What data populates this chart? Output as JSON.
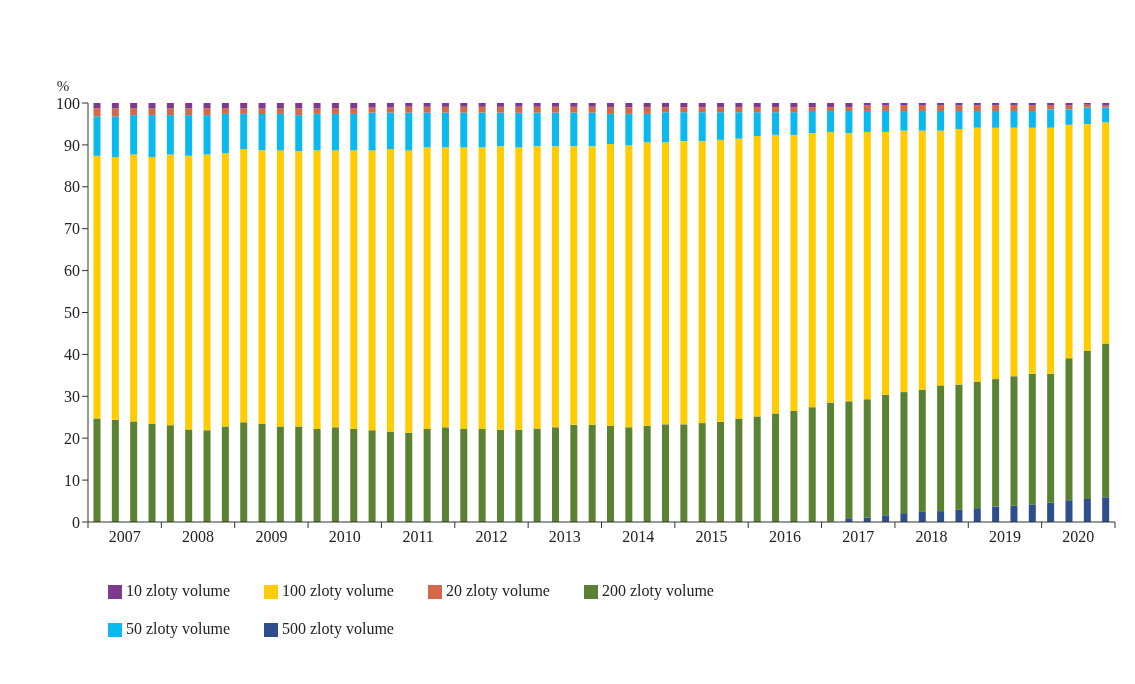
{
  "chart_data": {
    "type": "bar",
    "stacked": true,
    "ylabel": "%",
    "categories": [
      null,
      "2007",
      null,
      null,
      null,
      "2008",
      null,
      null,
      null,
      "2009",
      null,
      null,
      null,
      "2010",
      null,
      null,
      null,
      "2011",
      null,
      null,
      null,
      "2012",
      null,
      null,
      null,
      "2013",
      null,
      null,
      null,
      "2014",
      null,
      null,
      null,
      "2015",
      null,
      null,
      null,
      "2016",
      null,
      null,
      null,
      "2017",
      null,
      null,
      null,
      "2018",
      null,
      null,
      null,
      "2019",
      null,
      null,
      null,
      "2020",
      null,
      null
    ],
    "ylim": [
      0,
      100
    ],
    "yticks": [
      0,
      10,
      20,
      30,
      40,
      50,
      60,
      70,
      80,
      90,
      100
    ],
    "grid": false,
    "legend": "bottom",
    "series": [
      {
        "name": "500 zloty volume",
        "color": "#2e4e8c",
        "values": [
          0,
          0,
          0,
          0,
          0,
          0,
          0,
          0,
          0,
          0,
          0,
          0,
          0,
          0,
          0,
          0,
          0,
          0,
          0,
          0,
          0,
          0,
          0,
          0,
          0,
          0,
          0,
          0,
          0,
          0,
          0,
          0,
          0,
          0,
          0,
          0,
          0,
          0,
          0,
          0,
          0.1,
          0.9,
          1.1,
          1.6,
          2.1,
          2.4,
          2.6,
          2.9,
          3.3,
          3.7,
          3.9,
          4.2,
          4.6,
          5.2,
          5.5,
          5.9
        ]
      },
      {
        "name": "200 zloty volume",
        "color": "#5a8232",
        "values": [
          24.7,
          24.4,
          24.0,
          23.4,
          23.1,
          22.1,
          21.9,
          22.8,
          23.8,
          23.4,
          22.8,
          22.8,
          22.2,
          22.6,
          22.2,
          21.9,
          21.6,
          21.3,
          22.2,
          22.6,
          22.2,
          22.2,
          22.0,
          22.0,
          22.3,
          22.6,
          23.2,
          23.2,
          23.0,
          22.6,
          23.0,
          23.3,
          23.3,
          23.6,
          23.9,
          24.6,
          25.2,
          25.9,
          26.5,
          27.4,
          28.4,
          27.9,
          28.2,
          28.7,
          28.9,
          29.2,
          30.0,
          29.9,
          30.2,
          30.4,
          30.9,
          31.2,
          30.8,
          33.9,
          35.3,
          36.7
        ]
      },
      {
        "name": "100 zloty volume",
        "color": "#ffcc00",
        "values": [
          62.7,
          62.7,
          63.7,
          63.7,
          64.6,
          65.3,
          65.8,
          65.2,
          65.2,
          65.3,
          65.9,
          65.7,
          66.5,
          66.1,
          66.5,
          66.8,
          67.4,
          67.4,
          67.2,
          66.8,
          67.2,
          67.2,
          67.7,
          67.4,
          67.4,
          67.1,
          66.5,
          66.5,
          67.2,
          67.3,
          67.6,
          67.3,
          67.6,
          67.3,
          67.3,
          66.9,
          66.9,
          66.5,
          65.9,
          65.4,
          64.6,
          64.0,
          63.8,
          62.8,
          62.4,
          61.8,
          60.8,
          61.0,
          60.6,
          60.0,
          59.3,
          58.7,
          58.7,
          55.7,
          54.2,
          52.8
        ]
      },
      {
        "name": "50 zloty volume",
        "color": "#0ab9ee",
        "values": [
          9.4,
          9.7,
          9.4,
          10.0,
          9.4,
          9.7,
          9.4,
          9.4,
          8.4,
          8.7,
          8.7,
          8.6,
          8.7,
          8.7,
          8.7,
          9.0,
          8.7,
          9.0,
          8.3,
          8.3,
          8.3,
          8.3,
          8.0,
          8.3,
          8.0,
          8.0,
          8.0,
          8.0,
          7.2,
          7.5,
          6.8,
          7.2,
          6.9,
          6.9,
          6.6,
          6.3,
          5.7,
          5.4,
          5.4,
          5.3,
          5.0,
          5.3,
          5.0,
          5.0,
          4.7,
          4.7,
          4.7,
          4.3,
          4.0,
          4.0,
          4.0,
          4.0,
          4.4,
          3.7,
          3.9,
          3.5
        ]
      },
      {
        "name": "20 zloty volume",
        "color": "#d4694a",
        "values": [
          1.9,
          1.9,
          1.6,
          1.6,
          1.6,
          1.6,
          1.6,
          1.3,
          1.3,
          1.3,
          1.3,
          1.6,
          1.3,
          1.3,
          1.3,
          1.2,
          1.2,
          1.4,
          1.4,
          1.4,
          1.4,
          1.4,
          1.4,
          1.4,
          1.4,
          1.4,
          1.4,
          1.4,
          1.6,
          1.6,
          1.6,
          1.2,
          1.2,
          1.2,
          1.2,
          1.2,
          1.2,
          1.2,
          1.2,
          0.9,
          0.9,
          0.9,
          1.3,
          1.3,
          1.4,
          1.4,
          1.4,
          1.4,
          1.4,
          1.4,
          1.4,
          1.4,
          1.0,
          1.0,
          0.7,
          0.5
        ]
      },
      {
        "name": "10 zloty volume",
        "color": "#7e3a8e",
        "values": [
          1.3,
          1.3,
          1.3,
          1.3,
          1.3,
          1.3,
          1.3,
          1.3,
          1.3,
          1.3,
          1.3,
          1.3,
          1.3,
          1.3,
          1.3,
          1.1,
          1.1,
          0.9,
          0.9,
          0.9,
          0.9,
          0.9,
          0.9,
          0.9,
          0.9,
          0.9,
          0.9,
          0.9,
          1.0,
          1.0,
          1.0,
          1.0,
          1.0,
          1.0,
          1.0,
          1.0,
          1.0,
          1.0,
          1.0,
          1.0,
          1.0,
          1.0,
          0.6,
          0.6,
          0.5,
          0.5,
          0.5,
          0.5,
          0.5,
          0.5,
          0.5,
          0.5,
          0.5,
          0.5,
          0.4,
          0.6
        ]
      }
    ]
  }
}
